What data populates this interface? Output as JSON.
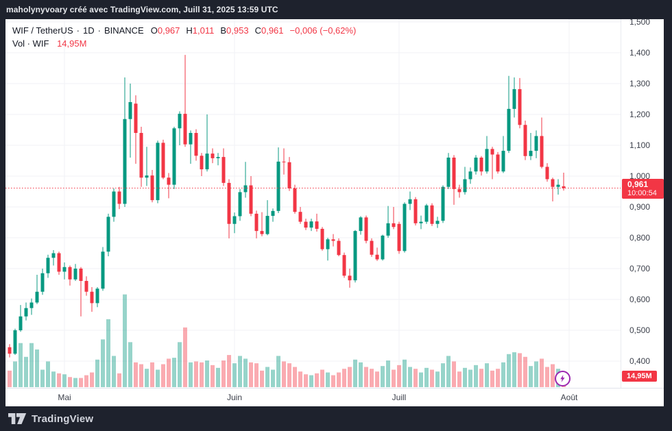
{
  "header": {
    "attribution": "maholynyvoary créé avec TradingView.com, Juill 31, 2025 13:59 UTC"
  },
  "legend": {
    "title": "WIF / TetherUS",
    "interval": "1D",
    "exchange": "BINANCE",
    "separator": "·",
    "ohlc": [
      {
        "label": "O",
        "value": "0,967"
      },
      {
        "label": "H",
        "value": "1,011"
      },
      {
        "label": "B",
        "value": "0,953"
      },
      {
        "label": "C",
        "value": "0,961"
      }
    ],
    "change": "−0,006 (−0,62%)",
    "volume_label": "Vol · WIF",
    "volume_value": "14,95M"
  },
  "price_axis": {
    "ticks": [
      {
        "label": "1,500",
        "value": 1.5
      },
      {
        "label": "1,400",
        "value": 1.4
      },
      {
        "label": "1,300",
        "value": 1.3
      },
      {
        "label": "1,200",
        "value": 1.2
      },
      {
        "label": "1,100",
        "value": 1.1
      },
      {
        "label": "1,000",
        "value": 1.0
      },
      {
        "label": "0,900",
        "value": 0.9
      },
      {
        "label": "0,800",
        "value": 0.8
      },
      {
        "label": "0,700",
        "value": 0.7
      },
      {
        "label": "0,600",
        "value": 0.6
      },
      {
        "label": "0,500",
        "value": 0.5
      },
      {
        "label": "0,400",
        "value": 0.4
      }
    ],
    "current_badge": {
      "price": "0,961",
      "countdown": "10:00:54"
    },
    "volume_badge": "14,95M"
  },
  "time_axis": {
    "ticks": [
      {
        "label": "Mai",
        "index": 10
      },
      {
        "label": "Juin",
        "index": 41
      },
      {
        "label": "Juill",
        "index": 71
      },
      {
        "label": "Août",
        "index": 102
      }
    ]
  },
  "footer": {
    "brand": "TradingView"
  },
  "icons": {
    "flash": "lightning-bolt"
  },
  "colors": {
    "up": "#089981",
    "down": "#f23645",
    "volume_up": "rgba(8,153,129,0.42)",
    "volume_down": "rgba(242,54,69,0.42)",
    "price_line": "#f23645",
    "badge": "#f23645",
    "flash": "#9c27b0",
    "grid": "#f0f2f6"
  },
  "chart_data": {
    "type": "candlestick+volume",
    "title": "WIF / TetherUS · 1D · BINANCE",
    "interval": "1D",
    "unit_volume": "millions WIF",
    "ylim": [
      0.4,
      1.5
    ],
    "grid": true,
    "current": {
      "open": 0.967,
      "high": 1.011,
      "low": 0.953,
      "close": 0.961,
      "change": -0.006,
      "change_pct": -0.62,
      "volume_m": 14.95,
      "countdown": "10:00:54"
    },
    "candles_format": [
      "open",
      "high",
      "low",
      "close",
      "volume_m"
    ],
    "candles": [
      [
        0.445,
        0.455,
        0.412,
        0.424,
        18
      ],
      [
        0.424,
        0.505,
        0.42,
        0.5,
        28
      ],
      [
        0.5,
        0.582,
        0.495,
        0.545,
        48
      ],
      [
        0.545,
        0.59,
        0.532,
        0.572,
        33
      ],
      [
        0.572,
        0.603,
        0.55,
        0.59,
        48
      ],
      [
        0.59,
        0.68,
        0.585,
        0.625,
        41
      ],
      [
        0.625,
        0.7,
        0.615,
        0.685,
        19
      ],
      [
        0.685,
        0.745,
        0.67,
        0.735,
        28
      ],
      [
        0.735,
        0.76,
        0.71,
        0.75,
        17
      ],
      [
        0.75,
        0.755,
        0.68,
        0.69,
        15
      ],
      [
        0.69,
        0.72,
        0.665,
        0.705,
        14
      ],
      [
        0.705,
        0.71,
        0.645,
        0.665,
        11
      ],
      [
        0.665,
        0.715,
        0.66,
        0.7,
        10
      ],
      [
        0.7,
        0.705,
        0.545,
        0.66,
        10
      ],
      [
        0.66,
        0.675,
        0.612,
        0.625,
        13
      ],
      [
        0.625,
        0.64,
        0.56,
        0.588,
        16
      ],
      [
        0.588,
        0.64,
        0.575,
        0.635,
        30
      ],
      [
        0.635,
        0.77,
        0.628,
        0.755,
        52
      ],
      [
        0.755,
        0.878,
        0.74,
        0.868,
        74
      ],
      [
        0.868,
        0.96,
        0.852,
        0.95,
        34
      ],
      [
        0.95,
        0.965,
        0.893,
        0.91,
        15
      ],
      [
        0.91,
        1.32,
        0.9,
        1.185,
        101
      ],
      [
        1.185,
        1.3,
        1.06,
        1.24,
        49
      ],
      [
        1.235,
        1.262,
        1.04,
        1.14,
        27
      ],
      [
        1.14,
        1.16,
        0.965,
        0.995,
        25
      ],
      [
        0.995,
        1.095,
        0.968,
        1.002,
        20
      ],
      [
        1.002,
        1.02,
        0.915,
        0.922,
        27
      ],
      [
        0.922,
        1.115,
        0.912,
        1.108,
        19
      ],
      [
        1.108,
        1.118,
        0.99,
        0.995,
        25
      ],
      [
        0.995,
        1.01,
        0.928,
        0.972,
        31
      ],
      [
        0.972,
        1.16,
        0.958,
        1.155,
        32
      ],
      [
        1.155,
        1.21,
        1.1,
        1.202,
        49
      ],
      [
        1.202,
        1.393,
        1.095,
        1.103,
        65
      ],
      [
        1.103,
        1.148,
        1.04,
        1.14,
        27
      ],
      [
        1.14,
        1.152,
        1.05,
        1.066,
        28
      ],
      [
        1.066,
        1.075,
        1.0,
        1.022,
        27
      ],
      [
        1.022,
        1.2,
        1.015,
        1.073,
        29
      ],
      [
        1.073,
        1.09,
        1.042,
        1.058,
        24
      ],
      [
        1.058,
        1.075,
        1.035,
        1.062,
        21
      ],
      [
        1.062,
        1.09,
        0.968,
        0.978,
        29
      ],
      [
        0.978,
        0.99,
        0.798,
        0.845,
        35
      ],
      [
        0.845,
        0.882,
        0.815,
        0.87,
        26
      ],
      [
        0.87,
        0.958,
        0.855,
        0.948,
        34
      ],
      [
        0.948,
        1.046,
        0.93,
        0.97,
        31
      ],
      [
        0.97,
        1.0,
        0.87,
        0.878,
        27
      ],
      [
        0.878,
        0.888,
        0.798,
        0.822,
        26
      ],
      [
        0.822,
        0.883,
        0.805,
        0.812,
        18
      ],
      [
        0.812,
        0.922,
        0.808,
        0.871,
        22
      ],
      [
        0.871,
        0.895,
        0.852,
        0.887,
        19
      ],
      [
        0.887,
        1.093,
        0.88,
        1.047,
        34
      ],
      [
        1.047,
        1.09,
        1.005,
        1.045,
        28
      ],
      [
        1.045,
        1.062,
        0.952,
        0.96,
        26
      ],
      [
        0.96,
        0.972,
        0.878,
        0.884,
        22
      ],
      [
        0.884,
        0.9,
        0.845,
        0.852,
        17
      ],
      [
        0.852,
        0.862,
        0.825,
        0.833,
        14
      ],
      [
        0.833,
        0.862,
        0.822,
        0.853,
        13
      ],
      [
        0.853,
        0.878,
        0.82,
        0.829,
        15
      ],
      [
        0.829,
        0.835,
        0.758,
        0.763,
        19
      ],
      [
        0.763,
        0.8,
        0.726,
        0.795,
        16
      ],
      [
        0.795,
        0.812,
        0.772,
        0.79,
        13
      ],
      [
        0.79,
        0.798,
        0.74,
        0.744,
        16
      ],
      [
        0.744,
        0.752,
        0.67,
        0.677,
        20
      ],
      [
        0.677,
        0.7,
        0.638,
        0.662,
        22
      ],
      [
        0.662,
        0.825,
        0.655,
        0.822,
        30
      ],
      [
        0.822,
        0.87,
        0.81,
        0.866,
        27
      ],
      [
        0.866,
        0.872,
        0.782,
        0.79,
        22
      ],
      [
        0.79,
        0.798,
        0.738,
        0.745,
        20
      ],
      [
        0.745,
        0.768,
        0.725,
        0.73,
        17
      ],
      [
        0.73,
        0.81,
        0.726,
        0.807,
        23
      ],
      [
        0.807,
        0.903,
        0.8,
        0.847,
        29
      ],
      [
        0.847,
        0.9,
        0.828,
        0.835,
        19
      ],
      [
        0.845,
        0.852,
        0.748,
        0.757,
        24
      ],
      [
        0.757,
        0.915,
        0.752,
        0.91,
        30
      ],
      [
        0.91,
        0.95,
        0.89,
        0.925,
        22
      ],
      [
        0.925,
        0.932,
        0.84,
        0.847,
        20
      ],
      [
        0.847,
        0.872,
        0.828,
        0.852,
        16
      ],
      [
        0.852,
        0.91,
        0.845,
        0.905,
        21
      ],
      [
        0.905,
        0.912,
        0.838,
        0.845,
        19
      ],
      [
        0.845,
        0.868,
        0.832,
        0.855,
        17
      ],
      [
        0.855,
        0.97,
        0.848,
        0.965,
        26
      ],
      [
        0.965,
        1.075,
        0.958,
        1.06,
        34
      ],
      [
        1.06,
        1.068,
        0.907,
        0.958,
        28
      ],
      [
        0.958,
        0.972,
        0.93,
        0.948,
        17
      ],
      [
        0.948,
        1.03,
        0.94,
        0.99,
        21
      ],
      [
        0.99,
        1.028,
        0.975,
        1.015,
        19
      ],
      [
        1.015,
        1.068,
        1.005,
        1.06,
        24
      ],
      [
        1.06,
        1.065,
        1.002,
        1.015,
        20
      ],
      [
        1.015,
        1.13,
        1.008,
        1.088,
        26
      ],
      [
        1.088,
        1.095,
        0.99,
        1.07,
        18
      ],
      [
        1.07,
        1.078,
        1.008,
        1.015,
        20
      ],
      [
        1.015,
        1.13,
        1.01,
        1.082,
        27
      ],
      [
        1.082,
        1.325,
        1.075,
        1.218,
        36
      ],
      [
        1.218,
        1.32,
        1.19,
        1.282,
        38
      ],
      [
        1.282,
        1.318,
        1.155,
        1.166,
        37
      ],
      [
        1.166,
        1.18,
        1.052,
        1.065,
        33
      ],
      [
        1.065,
        1.14,
        1.052,
        1.082,
        23
      ],
      [
        1.082,
        1.148,
        1.058,
        1.13,
        28
      ],
      [
        1.13,
        1.19,
        1.025,
        1.03,
        31
      ],
      [
        1.03,
        1.042,
        0.982,
        0.99,
        22
      ],
      [
        0.99,
        0.995,
        0.918,
        0.965,
        25
      ],
      [
        0.965,
        0.99,
        0.94,
        0.972,
        20
      ],
      [
        0.967,
        1.011,
        0.953,
        0.961,
        14.95
      ]
    ]
  }
}
